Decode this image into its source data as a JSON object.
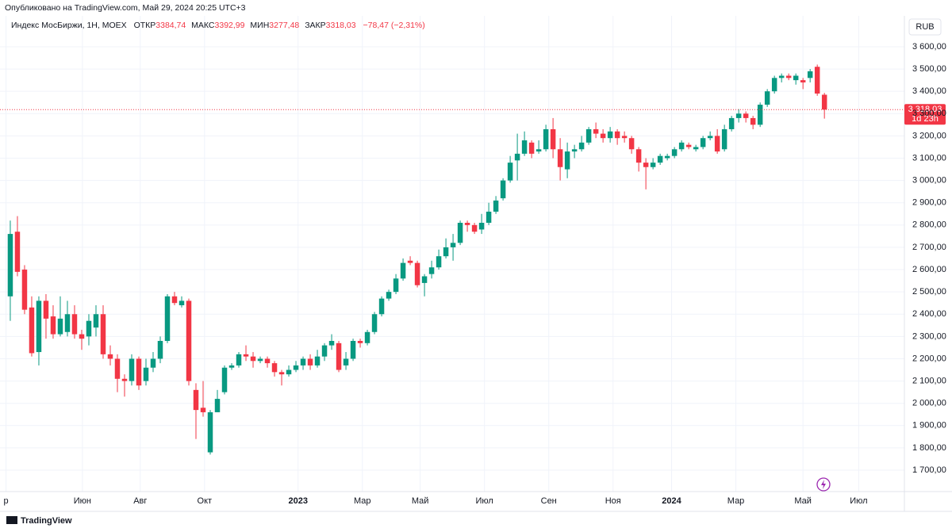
{
  "header": {
    "published": "Опубликовано на TradingView.com, Май 29, 2024 20:25 UTC+3",
    "symbol": "Индекс МосБиржи, 1Н, MOEX",
    "open_label": "ОТКР",
    "open_value": "3384,74",
    "high_label": "МАКС",
    "high_value": "3392,99",
    "low_label": "МИН",
    "low_value": "3277,48",
    "close_label": "ЗАКР",
    "close_value": "3318,03",
    "change": "−78,47 (−2,31%)"
  },
  "currency": "RUB",
  "footer": "TradingView",
  "chart_data": {
    "type": "candlestick",
    "up_color": "#089981",
    "down_color": "#f23645",
    "grid": true,
    "price_label": "3 318,03",
    "countdown": "1d 23h",
    "xlim": [
      -1.44,
      125.2
    ],
    "ylim": [
      1604,
      3639
    ],
    "xticks": [
      {
        "value": -0.6,
        "label": "р"
      },
      {
        "value": 10.1,
        "label": "Июн"
      },
      {
        "value": 18.2,
        "label": "Авг"
      },
      {
        "value": 27.2,
        "label": "Окт"
      },
      {
        "value": 40.3,
        "label": "2023"
      },
      {
        "value": 49.3,
        "label": "Мар"
      },
      {
        "value": 57.4,
        "label": "Май"
      },
      {
        "value": 66.4,
        "label": "Июл"
      },
      {
        "value": 75.4,
        "label": "Сен"
      },
      {
        "value": 84.4,
        "label": "Ноя"
      },
      {
        "value": 92.6,
        "label": "2024"
      },
      {
        "value": 101.6,
        "label": "Мар"
      },
      {
        "value": 111,
        "label": "Май"
      },
      {
        "value": 118.8,
        "label": "Июл"
      }
    ],
    "yticks": [
      {
        "value": 1700,
        "label": "1 700,00"
      },
      {
        "value": 1800,
        "label": "1 800,00"
      },
      {
        "value": 1900,
        "label": "1 900,00"
      },
      {
        "value": 2000,
        "label": "2 000,00"
      },
      {
        "value": 2100,
        "label": "2 100,00"
      },
      {
        "value": 2200,
        "label": "2 200,00"
      },
      {
        "value": 2300,
        "label": "2 300,00"
      },
      {
        "value": 2400,
        "label": "2 400,00"
      },
      {
        "value": 2500,
        "label": "2 500,00"
      },
      {
        "value": 2600,
        "label": "2 600,00"
      },
      {
        "value": 2700,
        "label": "2 700,00"
      },
      {
        "value": 2800,
        "label": "2 800,00"
      },
      {
        "value": 2900,
        "label": "2 900,00"
      },
      {
        "value": 3000,
        "label": "3 000,00"
      },
      {
        "value": 3100,
        "label": "3 100,00"
      },
      {
        "value": 3200,
        "label": "3 200,00"
      },
      {
        "value": 3300,
        "label": "3 300,00"
      },
      {
        "value": 3400,
        "label": "3 400,00"
      },
      {
        "value": 3500,
        "label": "3 500,00"
      },
      {
        "value": 3600,
        "label": "3 600,00"
      }
    ],
    "open": [
      2480,
      2770,
      2600,
      2430,
      2230,
      2460,
      2390,
      2310,
      2320,
      2400,
      2310,
      2300,
      2340,
      2400,
      2220,
      2200,
      2110,
      2100,
      2200,
      2100,
      2160,
      2200,
      2280,
      2480,
      2440,
      2460,
      2060,
      1980,
      1780,
      1960,
      2050,
      2160,
      2170,
      2220,
      2210,
      2190,
      2200,
      2180,
      2140,
      2130,
      2150,
      2170,
      2200,
      2170,
      2210,
      2260,
      2270,
      2170,
      2200,
      2280,
      2270,
      2320,
      2400,
      2470,
      2500,
      2560,
      2640,
      2630,
      2540,
      2580,
      2610,
      2660,
      2700,
      2720,
      2810,
      2800,
      2780,
      2810,
      2860,
      2920,
      3000,
      3090,
      3120,
      3170,
      3130,
      3140,
      3230,
      3140,
      3050,
      3130,
      3140,
      3170,
      3230,
      3210,
      3190,
      3220,
      3200,
      3190,
      3140,
      3080,
      3060,
      3080,
      3100,
      3110,
      3140,
      3160,
      3140,
      3150,
      3190,
      3200,
      3140,
      3230,
      3280,
      3300,
      3280,
      3250,
      3340,
      3400,
      3460,
      3470,
      3450,
      3450,
      3460,
      3510,
      3384.74
    ],
    "high": [
      2820,
      2840,
      2620,
      2480,
      2480,
      2490,
      2440,
      2480,
      2460,
      2440,
      2330,
      2400,
      2440,
      2440,
      2260,
      2220,
      2130,
      2220,
      2210,
      2200,
      2230,
      2300,
      2490,
      2500,
      2480,
      2470,
      2090,
      2100,
      1970,
      2060,
      2170,
      2180,
      2230,
      2260,
      2230,
      2210,
      2210,
      2190,
      2150,
      2170,
      2190,
      2210,
      2220,
      2240,
      2270,
      2310,
      2280,
      2230,
      2290,
      2290,
      2330,
      2410,
      2480,
      2510,
      2580,
      2650,
      2660,
      2640,
      2580,
      2640,
      2690,
      2740,
      2760,
      2820,
      2820,
      2810,
      2850,
      2900,
      2930,
      3010,
      3110,
      3210,
      3220,
      3180,
      3180,
      3250,
      3280,
      3190,
      3170,
      3160,
      3200,
      3240,
      3260,
      3230,
      3240,
      3230,
      3220,
      3200,
      3150,
      3100,
      3100,
      3120,
      3120,
      3150,
      3180,
      3170,
      3160,
      3200,
      3220,
      3230,
      3250,
      3290,
      3320,
      3310,
      3290,
      3350,
      3410,
      3470,
      3480,
      3480,
      3480,
      3460,
      3500,
      3520,
      3392.99
    ],
    "low": [
      2370,
      2570,
      2400,
      2210,
      2170,
      2290,
      2290,
      2300,
      2300,
      2290,
      2240,
      2260,
      2300,
      2200,
      2170,
      2050,
      2030,
      2080,
      2060,
      2080,
      2140,
      2180,
      2270,
      2440,
      2430,
      2080,
      1840,
      1940,
      1770,
      1960,
      2040,
      2150,
      2160,
      2190,
      2160,
      2180,
      2160,
      2120,
      2080,
      2120,
      2140,
      2150,
      2150,
      2160,
      2190,
      2240,
      2140,
      2150,
      2190,
      2250,
      2260,
      2310,
      2390,
      2460,
      2490,
      2550,
      2620,
      2520,
      2480,
      2560,
      2600,
      2650,
      2640,
      2710,
      2770,
      2760,
      2760,
      2800,
      2850,
      2910,
      2990,
      3000,
      3110,
      3100,
      3120,
      3130,
      3100,
      3000,
      3010,
      3100,
      3130,
      3160,
      3190,
      3170,
      3170,
      3160,
      3170,
      3120,
      3040,
      2960,
      3050,
      3070,
      3090,
      3100,
      3130,
      3140,
      3130,
      3140,
      3180,
      3120,
      3130,
      3220,
      3260,
      3260,
      3230,
      3240,
      3330,
      3390,
      3440,
      3450,
      3430,
      3410,
      3440,
      3380,
      3277.48
    ],
    "close": [
      2760,
      2590,
      2420,
      2225,
      2460,
      2380,
      2310,
      2380,
      2400,
      2310,
      2290,
      2370,
      2400,
      2220,
      2200,
      2110,
      2100,
      2200,
      2080,
      2160,
      2200,
      2280,
      2480,
      2450,
      2460,
      2100,
      1970,
      1960,
      1960,
      2020,
      2160,
      2170,
      2220,
      2210,
      2190,
      2200,
      2180,
      2140,
      2130,
      2150,
      2170,
      2200,
      2170,
      2210,
      2260,
      2280,
      2150,
      2200,
      2280,
      2270,
      2320,
      2400,
      2470,
      2500,
      2560,
      2630,
      2630,
      2530,
      2570,
      2610,
      2660,
      2700,
      2720,
      2810,
      2800,
      2770,
      2810,
      2860,
      2910,
      3000,
      3080,
      3120,
      3180,
      3120,
      3140,
      3230,
      3140,
      3060,
      3130,
      3140,
      3170,
      3230,
      3210,
      3190,
      3220,
      3190,
      3190,
      3140,
      3080,
      3060,
      3080,
      3110,
      3110,
      3140,
      3170,
      3150,
      3150,
      3190,
      3200,
      3130,
      3230,
      3280,
      3300,
      3280,
      3250,
      3340,
      3400,
      3460,
      3470,
      3460,
      3470,
      3440,
      3490,
      3390,
      3318.03
    ]
  }
}
